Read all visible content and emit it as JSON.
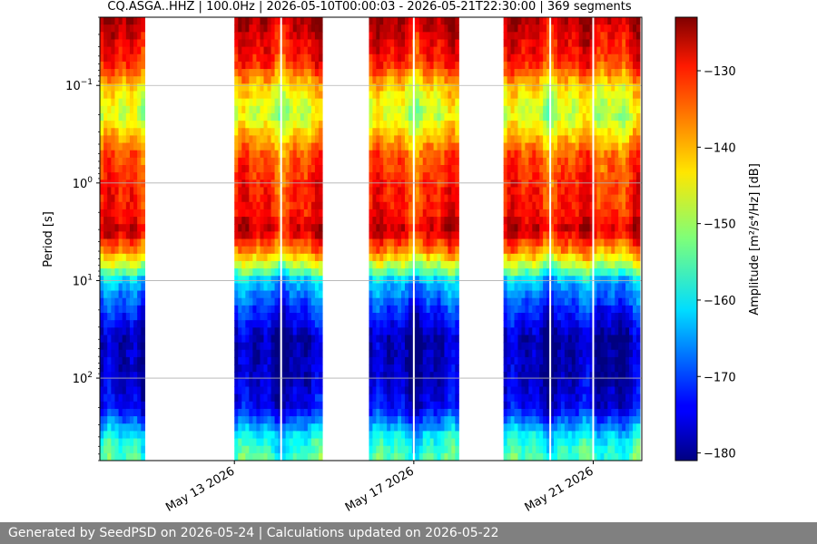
{
  "chart_data": {
    "type": "heatmap",
    "title": "CQ.ASGA..HHZ | 100.0Hz | 2026-05-10T00:00:03 - 2026-05-21T22:30:00 | 369 segments",
    "ylabel": "Period [s]",
    "xlabel": "",
    "y_scale": "log",
    "y_inverted": true,
    "ylim": [
      0.02,
      700
    ],
    "y_ticks": [
      {
        "value": 0.1,
        "base": "10",
        "exp": "−1"
      },
      {
        "value": 1,
        "base": "10",
        "exp": "0"
      },
      {
        "value": 10,
        "base": "10",
        "exp": "1"
      },
      {
        "value": 100,
        "base": "10",
        "exp": "2"
      }
    ],
    "xlim": [
      "2026-05-10",
      "2026-05-22T02:00"
    ],
    "x_ticks": [
      {
        "date": "2026-05-13",
        "label": "May 13 2026"
      },
      {
        "date": "2026-05-17",
        "label": "May 17 2026"
      },
      {
        "date": "2026-05-21",
        "label": "May 21 2026"
      }
    ],
    "data_segments": [
      {
        "start": "2026-05-10T00:00",
        "end": "2026-05-11T00:00"
      },
      {
        "start": "2026-05-13T00:00",
        "end": "2026-05-14T23:00"
      },
      {
        "start": "2026-05-16T00:00",
        "end": "2026-05-18T00:00"
      },
      {
        "start": "2026-05-19T00:00",
        "end": "2026-05-22T01:00"
      }
    ],
    "gaps_inside_segments": [
      "2026-05-14T01:00",
      "2026-05-17T00:00",
      "2026-05-20T01:00",
      "2026-05-21T00:00"
    ],
    "period_profile": [
      {
        "period": 0.02,
        "db": -126
      },
      {
        "period": 0.03,
        "db": -129
      },
      {
        "period": 0.06,
        "db": -133
      },
      {
        "period": 0.1,
        "db": -143
      },
      {
        "period": 0.2,
        "db": -149
      },
      {
        "period": 0.5,
        "db": -136
      },
      {
        "period": 1,
        "db": -133
      },
      {
        "period": 2,
        "db": -132
      },
      {
        "period": 3,
        "db": -128
      },
      {
        "period": 5,
        "db": -139
      },
      {
        "period": 8,
        "db": -154
      },
      {
        "period": 10,
        "db": -163
      },
      {
        "period": 20,
        "db": -172
      },
      {
        "period": 40,
        "db": -179
      },
      {
        "period": 100,
        "db": -178
      },
      {
        "period": 200,
        "db": -175
      },
      {
        "period": 400,
        "db": -160
      },
      {
        "period": 700,
        "db": -155
      }
    ],
    "colorbar": {
      "label": "Amplitude [m²/s⁴/Hz] [dB]",
      "colormap": "jet",
      "min": -181,
      "max": -123,
      "ticks": [
        -130,
        -140,
        -150,
        -160,
        -170,
        -180
      ],
      "tick_labels": [
        "−130",
        "−140",
        "−150",
        "−160",
        "−170",
        "−180"
      ]
    },
    "grid": true
  },
  "footer": {
    "text": "Generated by SeedPSD on 2026-05-24 | Calculations updated on 2026-05-22"
  }
}
